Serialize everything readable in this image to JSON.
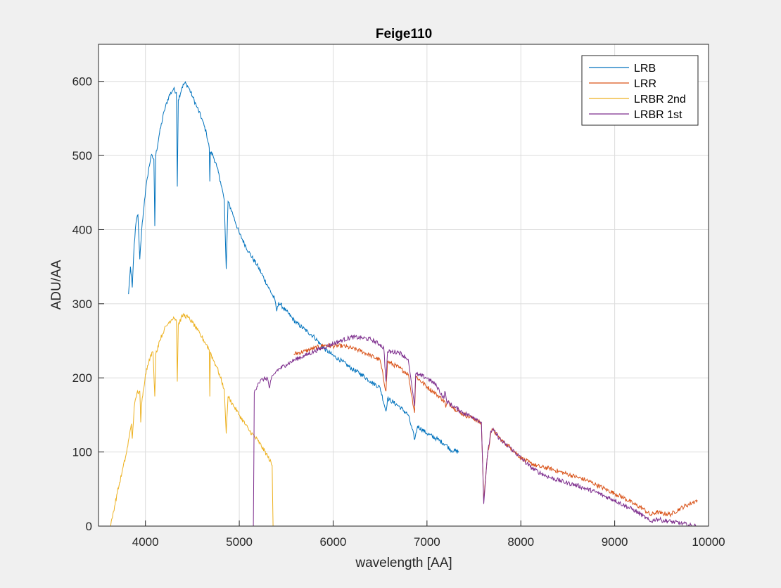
{
  "chart_data": {
    "type": "line",
    "title": "Feige110",
    "xlabel": "wavelength [AA]",
    "ylabel": "ADU/AA",
    "xlim": [
      3500,
      10000
    ],
    "ylim": [
      0,
      650
    ],
    "xticks": [
      4000,
      5000,
      6000,
      7000,
      8000,
      9000,
      10000
    ],
    "yticks": [
      0,
      100,
      200,
      300,
      400,
      500,
      600
    ],
    "grid": true,
    "legend_position": "top-right",
    "series": [
      {
        "name": "LRB",
        "color": "#0072BD",
        "points": [
          [
            3820,
            313
          ],
          [
            3840,
            350
          ],
          [
            3860,
            322
          ],
          [
            3880,
            380
          ],
          [
            3900,
            410
          ],
          [
            3920,
            420
          ],
          [
            3940,
            360
          ],
          [
            3960,
            400
          ],
          [
            3990,
            440
          ],
          [
            4020,
            470
          ],
          [
            4060,
            500
          ],
          [
            4090,
            495
          ],
          [
            4100,
            405
          ],
          [
            4110,
            500
          ],
          [
            4150,
            530
          ],
          [
            4200,
            560
          ],
          [
            4250,
            580
          ],
          [
            4300,
            590
          ],
          [
            4330,
            585
          ],
          [
            4340,
            458
          ],
          [
            4350,
            575
          ],
          [
            4390,
            592
          ],
          [
            4420,
            598
          ],
          [
            4460,
            592
          ],
          [
            4500,
            580
          ],
          [
            4550,
            565
          ],
          [
            4600,
            550
          ],
          [
            4650,
            530
          ],
          [
            4680,
            510
          ],
          [
            4686,
            465
          ],
          [
            4692,
            505
          ],
          [
            4720,
            500
          ],
          [
            4760,
            485
          ],
          [
            4800,
            465
          ],
          [
            4840,
            440
          ],
          [
            4861,
            347
          ],
          [
            4880,
            438
          ],
          [
            4920,
            425
          ],
          [
            5000,
            395
          ],
          [
            5100,
            370
          ],
          [
            5200,
            350
          ],
          [
            5300,
            325
          ],
          [
            5380,
            305
          ],
          [
            5400,
            290
          ],
          [
            5420,
            302
          ],
          [
            5500,
            290
          ],
          [
            5600,
            275
          ],
          [
            5700,
            265
          ],
          [
            5800,
            255
          ],
          [
            5900,
            240
          ],
          [
            6000,
            230
          ],
          [
            6100,
            222
          ],
          [
            6200,
            212
          ],
          [
            6300,
            205
          ],
          [
            6400,
            195
          ],
          [
            6500,
            187
          ],
          [
            6563,
            155
          ],
          [
            6580,
            172
          ],
          [
            6700,
            162
          ],
          [
            6800,
            150
          ],
          [
            6870,
            117
          ],
          [
            6900,
            135
          ],
          [
            7000,
            125
          ],
          [
            7100,
            118
          ],
          [
            7200,
            110
          ],
          [
            7250,
            103
          ],
          [
            7340,
            100
          ]
        ]
      },
      {
        "name": "LRR",
        "color": "#D95319",
        "points": [
          [
            5580,
            232
          ],
          [
            5700,
            236
          ],
          [
            5800,
            240
          ],
          [
            5900,
            244
          ],
          [
            6000,
            243
          ],
          [
            6100,
            243
          ],
          [
            6200,
            240
          ],
          [
            6300,
            236
          ],
          [
            6400,
            230
          ],
          [
            6500,
            224
          ],
          [
            6563,
            182
          ],
          [
            6580,
            222
          ],
          [
            6700,
            214
          ],
          [
            6800,
            205
          ],
          [
            6868,
            153
          ],
          [
            6880,
            202
          ],
          [
            7000,
            188
          ],
          [
            7100,
            178
          ],
          [
            7190,
            168
          ],
          [
            7200,
            160
          ],
          [
            7220,
            168
          ],
          [
            7300,
            158
          ],
          [
            7400,
            150
          ],
          [
            7500,
            145
          ],
          [
            7580,
            138
          ],
          [
            7605,
            35
          ],
          [
            7640,
            90
          ],
          [
            7680,
            126
          ],
          [
            7700,
            130
          ],
          [
            7800,
            115
          ],
          [
            7900,
            105
          ],
          [
            8000,
            92
          ],
          [
            8100,
            85
          ],
          [
            8200,
            80
          ],
          [
            8300,
            78
          ],
          [
            8400,
            74
          ],
          [
            8500,
            70
          ],
          [
            8600,
            66
          ],
          [
            8700,
            62
          ],
          [
            8800,
            56
          ],
          [
            8900,
            50
          ],
          [
            9000,
            44
          ],
          [
            9100,
            38
          ],
          [
            9200,
            30
          ],
          [
            9300,
            24
          ],
          [
            9380,
            15
          ],
          [
            9450,
            19
          ],
          [
            9500,
            17
          ],
          [
            9600,
            16
          ],
          [
            9700,
            24
          ],
          [
            9800,
            30
          ],
          [
            9880,
            35
          ]
        ]
      },
      {
        "name": "LRBR 2nd",
        "color": "#EDB120",
        "points": [
          [
            3630,
            0
          ],
          [
            3660,
            20
          ],
          [
            3700,
            45
          ],
          [
            3750,
            72
          ],
          [
            3800,
            100
          ],
          [
            3830,
            122
          ],
          [
            3850,
            138
          ],
          [
            3860,
            118
          ],
          [
            3880,
            160
          ],
          [
            3910,
            180
          ],
          [
            3940,
            182
          ],
          [
            3950,
            140
          ],
          [
            3960,
            165
          ],
          [
            4000,
            205
          ],
          [
            4040,
            225
          ],
          [
            4080,
            235
          ],
          [
            4100,
            175
          ],
          [
            4110,
            232
          ],
          [
            4150,
            250
          ],
          [
            4200,
            265
          ],
          [
            4250,
            275
          ],
          [
            4300,
            282
          ],
          [
            4330,
            278
          ],
          [
            4340,
            195
          ],
          [
            4350,
            272
          ],
          [
            4400,
            285
          ],
          [
            4450,
            282
          ],
          [
            4500,
            275
          ],
          [
            4550,
            265
          ],
          [
            4600,
            255
          ],
          [
            4650,
            245
          ],
          [
            4680,
            238
          ],
          [
            4686,
            175
          ],
          [
            4692,
            235
          ],
          [
            4720,
            225
          ],
          [
            4760,
            215
          ],
          [
            4800,
            200
          ],
          [
            4840,
            185
          ],
          [
            4861,
            125
          ],
          [
            4880,
            175
          ],
          [
            4950,
            160
          ],
          [
            5000,
            150
          ],
          [
            5100,
            130
          ],
          [
            5200,
            115
          ],
          [
            5300,
            95
          ],
          [
            5350,
            82
          ],
          [
            5360,
            0
          ]
        ]
      },
      {
        "name": "LRBR 1st",
        "color": "#7E2F8E",
        "points": [
          [
            5150,
            0
          ],
          [
            5160,
            180
          ],
          [
            5200,
            193
          ],
          [
            5250,
            198
          ],
          [
            5300,
            200
          ],
          [
            5320,
            186
          ],
          [
            5340,
            198
          ],
          [
            5400,
            210
          ],
          [
            5500,
            218
          ],
          [
            5600,
            225
          ],
          [
            5700,
            230
          ],
          [
            5800,
            236
          ],
          [
            5900,
            241
          ],
          [
            6000,
            246
          ],
          [
            6100,
            251
          ],
          [
            6200,
            255
          ],
          [
            6300,
            254
          ],
          [
            6400,
            252
          ],
          [
            6500,
            245
          ],
          [
            6540,
            240
          ],
          [
            6563,
            195
          ],
          [
            6580,
            235
          ],
          [
            6700,
            235
          ],
          [
            6800,
            225
          ],
          [
            6868,
            162
          ],
          [
            6880,
            205
          ],
          [
            7000,
            200
          ],
          [
            7100,
            190
          ],
          [
            7180,
            172
          ],
          [
            7190,
            182
          ],
          [
            7210,
            168
          ],
          [
            7300,
            160
          ],
          [
            7400,
            152
          ],
          [
            7500,
            147
          ],
          [
            7580,
            140
          ],
          [
            7605,
            30
          ],
          [
            7640,
            90
          ],
          [
            7680,
            128
          ],
          [
            7700,
            130
          ],
          [
            7800,
            114
          ],
          [
            7900,
            104
          ],
          [
            8000,
            92
          ],
          [
            8100,
            80
          ],
          [
            8200,
            72
          ],
          [
            8300,
            66
          ],
          [
            8400,
            62
          ],
          [
            8500,
            58
          ],
          [
            8600,
            55
          ],
          [
            8700,
            50
          ],
          [
            8800,
            46
          ],
          [
            8900,
            40
          ],
          [
            9000,
            35
          ],
          [
            9100,
            28
          ],
          [
            9200,
            22
          ],
          [
            9300,
            14
          ],
          [
            9380,
            6
          ],
          [
            9450,
            10
          ],
          [
            9500,
            8
          ],
          [
            9600,
            6
          ],
          [
            9700,
            4
          ],
          [
            9800,
            1
          ],
          [
            9880,
            0
          ]
        ]
      }
    ]
  }
}
